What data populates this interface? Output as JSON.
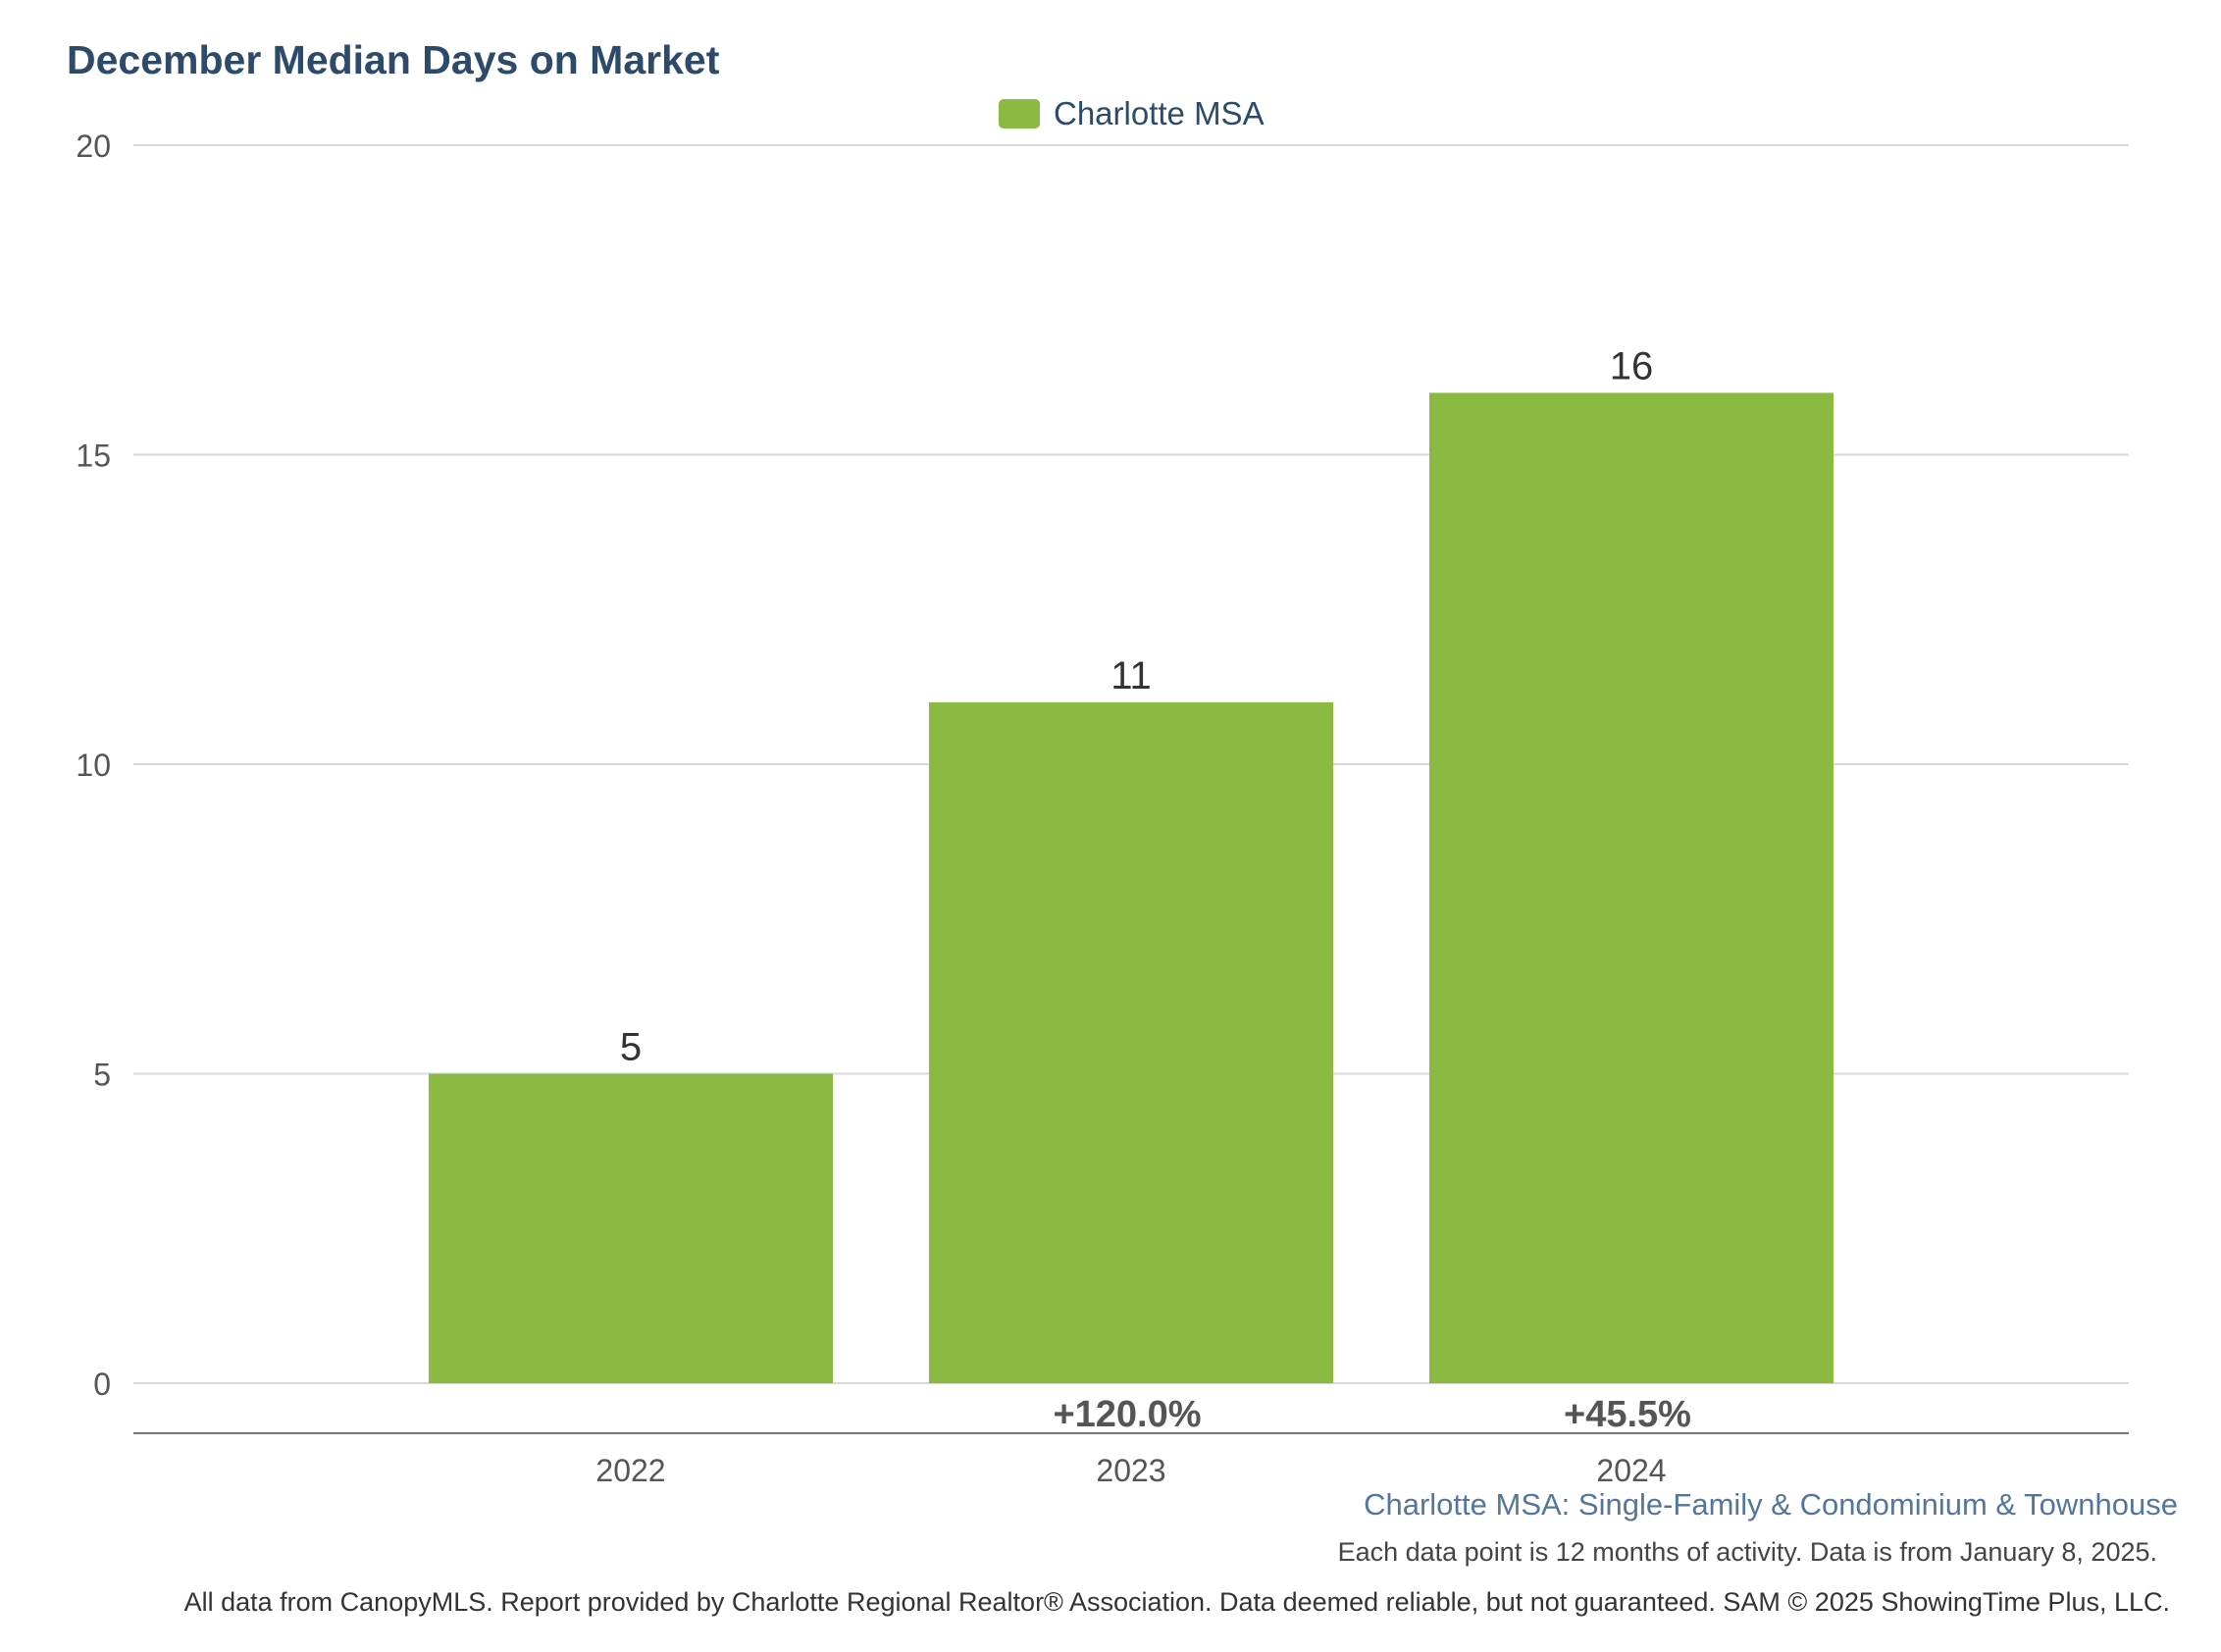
{
  "chart_data": {
    "type": "bar",
    "title": "December Median Days on Market",
    "categories": [
      "2022",
      "2023",
      "2024"
    ],
    "series": [
      {
        "name": "Charlotte MSA",
        "color": "#8aba41",
        "values": [
          5,
          11,
          16
        ]
      }
    ],
    "changes": [
      "",
      "+120.0%",
      "+45.5%"
    ],
    "ylim": [
      0,
      20
    ],
    "yticks": [
      0,
      5,
      10,
      15,
      20
    ],
    "grid": true,
    "legend_placement": "top-center"
  },
  "footer": {
    "subtitle": "Charlotte MSA: Single-Family & Condominium & Townhouse",
    "note": "Each data point is 12 months of activity. Data is from January 8, 2025.",
    "source": "All data from CanopyMLS. Report provided by Charlotte Regional Realtor® Association. Data deemed reliable, but not guaranteed. SAM © 2025 ShowingTime Plus, LLC."
  }
}
